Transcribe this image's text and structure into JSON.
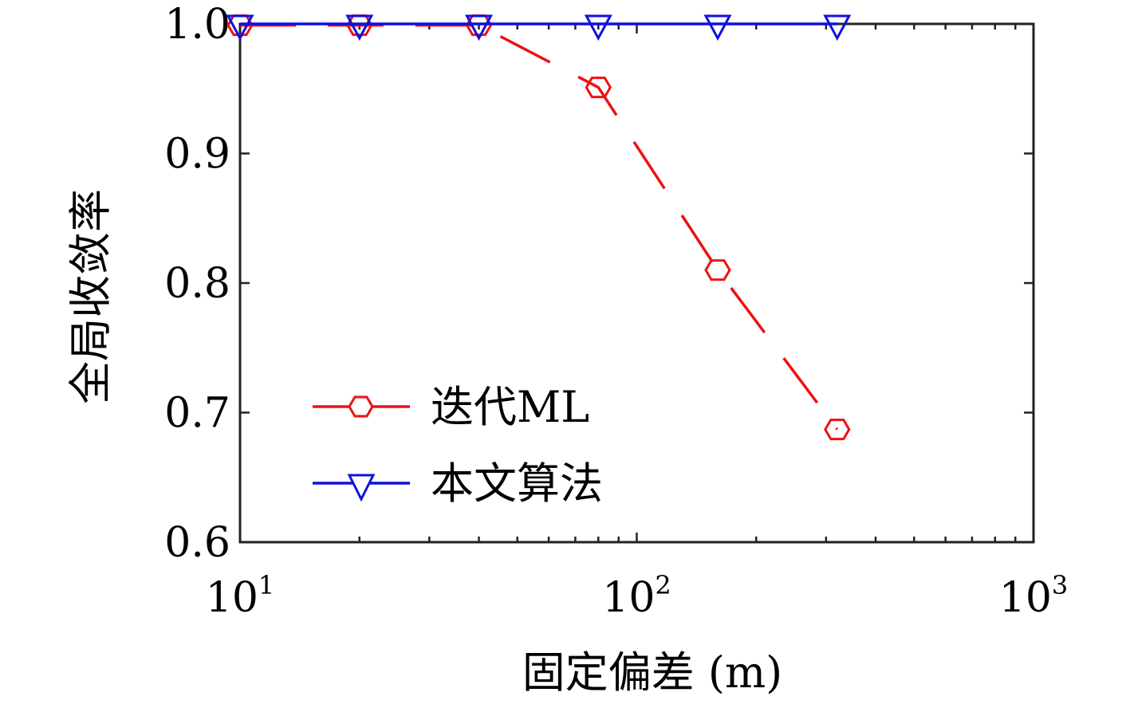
{
  "chart_data": {
    "type": "line",
    "xlabel": "固定偏差 (m)",
    "ylabel": "全局收敛率",
    "xscale": "log",
    "xlim": [
      10,
      1000
    ],
    "ylim": [
      0.6,
      1.0
    ],
    "xticks": [
      {
        "base": "10",
        "exp": "1",
        "value": 10
      },
      {
        "base": "10",
        "exp": "2",
        "value": 100
      },
      {
        "base": "10",
        "exp": "3",
        "value": 1000
      }
    ],
    "yticks": [
      {
        "label": "0.6",
        "value": 0.6
      },
      {
        "label": "0.7",
        "value": 0.7
      },
      {
        "label": "0.8",
        "value": 0.8
      },
      {
        "label": "0.9",
        "value": 0.9
      },
      {
        "label": "1.0",
        "value": 1.0
      }
    ],
    "grid": false,
    "legend_position": "lower-left",
    "series": [
      {
        "name": "迭代ML",
        "color": "#ee1111",
        "marker": "hexagon",
        "line_style": "dashed",
        "x": [
          10,
          20,
          40,
          80,
          160,
          320
        ],
        "y": [
          0.999,
          0.999,
          0.999,
          0.951,
          0.81,
          0.687
        ]
      },
      {
        "name": "本文算法",
        "color": "#1010dd",
        "marker": "triangle-down",
        "line_style": "solid",
        "x": [
          10,
          20,
          40,
          80,
          160,
          320
        ],
        "y": [
          1.0,
          1.0,
          1.0,
          1.0,
          1.0,
          1.0
        ]
      }
    ]
  }
}
